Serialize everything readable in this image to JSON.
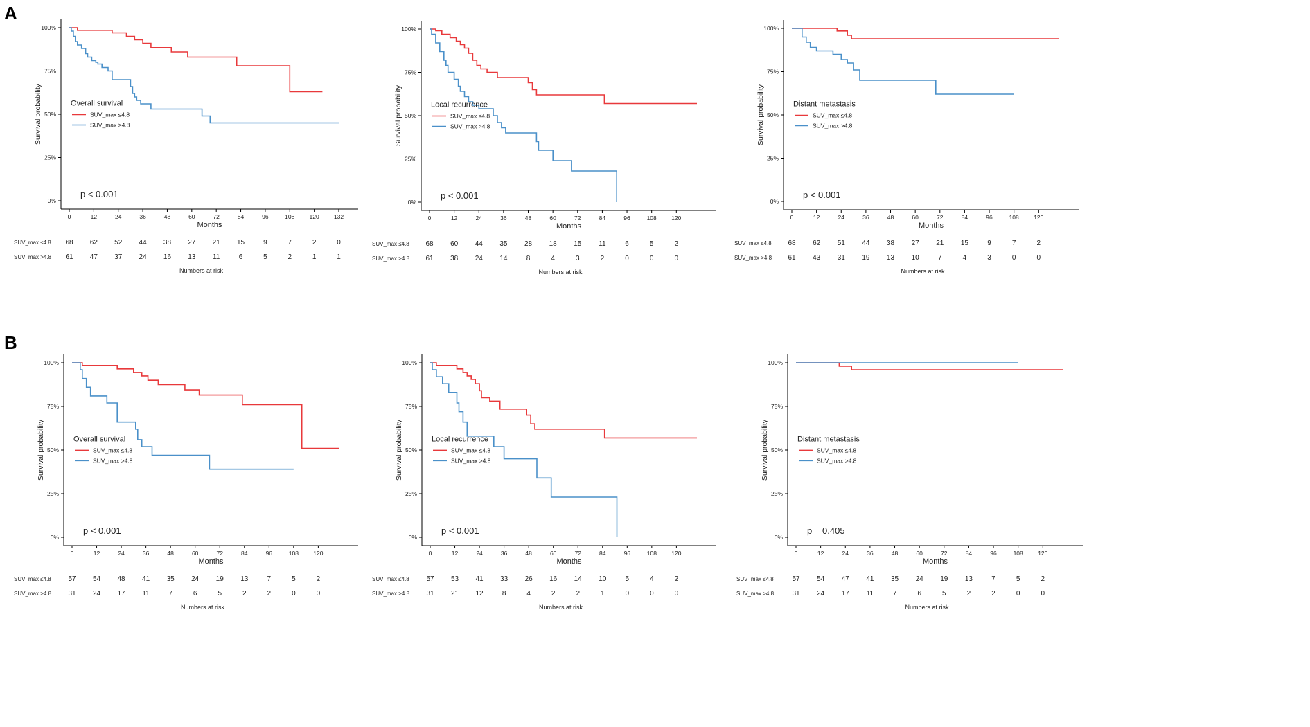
{
  "figure": {
    "panel_letters": [
      "A",
      "B"
    ],
    "colors": {
      "low": "#e8393b",
      "high": "#4a90c9",
      "axis": "#000000",
      "text": "#222222"
    }
  },
  "chart_data": [
    {
      "type": "line",
      "panel": "A",
      "position": "left",
      "title": "Overall survival",
      "xlabel": "Months",
      "ylabel": "Survival probability",
      "xlim": [
        0,
        132
      ],
      "ylim": [
        0,
        1
      ],
      "xticks": [
        0,
        12,
        24,
        36,
        48,
        60,
        72,
        84,
        96,
        108,
        120,
        132
      ],
      "yticks": [
        "0%",
        "25%",
        "50%",
        "75%",
        "100%"
      ],
      "pvalue": "p < 0.001",
      "legend": [
        "SUV_max ≤4.8",
        "SUV_max >4.8"
      ],
      "series": [
        {
          "name": "SUV_max ≤4.8",
          "color": "#e8393b",
          "x": [
            0,
            4,
            21,
            28,
            32,
            36,
            40,
            50,
            58,
            66,
            82,
            108,
            124
          ],
          "y": [
            1,
            0.985,
            0.97,
            0.95,
            0.93,
            0.91,
            0.885,
            0.86,
            0.83,
            0.83,
            0.78,
            0.63,
            0.63
          ]
        },
        {
          "name": "SUV_max >4.8",
          "color": "#4a90c9",
          "x": [
            0,
            1,
            2,
            3,
            4,
            6,
            8,
            9,
            11,
            13,
            14,
            16,
            19,
            21,
            30,
            31,
            32,
            33,
            35,
            40,
            65,
            69,
            132
          ],
          "y": [
            1,
            0.98,
            0.95,
            0.92,
            0.9,
            0.88,
            0.85,
            0.83,
            0.81,
            0.8,
            0.79,
            0.77,
            0.75,
            0.7,
            0.66,
            0.62,
            0.6,
            0.58,
            0.56,
            0.53,
            0.49,
            0.45,
            0.45
          ]
        }
      ],
      "risk_table": {
        "title": "Numbers at risk",
        "rows": [
          {
            "label": "SUV_max ≤4.8",
            "values": [
              "68",
              "62",
              "52",
              "44",
              "38",
              "27",
              "21",
              "15",
              "9",
              "7",
              "2",
              "0"
            ]
          },
          {
            "label": "SUV_max >4.8",
            "values": [
              "61",
              "47",
              "37",
              "24",
              "16",
              "13",
              "11",
              "6",
              "5",
              "2",
              "1",
              "1"
            ]
          }
        ]
      }
    },
    {
      "type": "line",
      "panel": "A",
      "position": "middle",
      "title": "Local recurrence",
      "xlabel": "Months",
      "ylabel": "Survival probability",
      "xlim": [
        0,
        130
      ],
      "ylim": [
        0,
        1
      ],
      "xticks": [
        0,
        12,
        24,
        36,
        48,
        60,
        72,
        84,
        96,
        108,
        120
      ],
      "yticks": [
        "0%",
        "25%",
        "50%",
        "75%",
        "100%"
      ],
      "pvalue": "p < 0.001",
      "legend": [
        "SUV_max ≤4.8",
        "SUV_max >4.8"
      ],
      "series": [
        {
          "name": "SUV_max ≤4.8",
          "color": "#e8393b",
          "x": [
            0,
            3,
            6,
            10,
            13,
            15,
            17,
            19,
            21,
            23,
            25,
            28,
            33,
            40,
            48,
            50,
            52,
            85,
            130
          ],
          "y": [
            1,
            0.99,
            0.97,
            0.95,
            0.93,
            0.91,
            0.89,
            0.86,
            0.82,
            0.79,
            0.77,
            0.75,
            0.72,
            0.72,
            0.69,
            0.65,
            0.62,
            0.57,
            0.57
          ]
        },
        {
          "name": "SUV_max >4.8",
          "color": "#4a90c9",
          "x": [
            0,
            1,
            3,
            5,
            7,
            8,
            9,
            12,
            14,
            15,
            17,
            19,
            21,
            24,
            31,
            33,
            35,
            37,
            52,
            53,
            60,
            69,
            91
          ],
          "y": [
            1,
            0.97,
            0.92,
            0.87,
            0.82,
            0.79,
            0.75,
            0.71,
            0.67,
            0.64,
            0.61,
            0.58,
            0.56,
            0.54,
            0.5,
            0.46,
            0.43,
            0.4,
            0.35,
            0.3,
            0.24,
            0.18,
            0
          ]
        }
      ],
      "risk_table": {
        "title": "Numbers at risk",
        "rows": [
          {
            "label": "SUV_max ≤4.8",
            "values": [
              "68",
              "60",
              "44",
              "35",
              "28",
              "18",
              "15",
              "11",
              "6",
              "5",
              "2"
            ]
          },
          {
            "label": "SUV_max >4.8",
            "values": [
              "61",
              "38",
              "24",
              "14",
              "8",
              "4",
              "3",
              "2",
              "0",
              "0",
              "0"
            ]
          }
        ]
      }
    },
    {
      "type": "line",
      "panel": "A",
      "position": "right",
      "title": "Distant metastasis",
      "xlabel": "Months",
      "ylabel": "Survival probability",
      "xlim": [
        0,
        130
      ],
      "ylim": [
        0,
        1
      ],
      "xticks": [
        0,
        12,
        24,
        36,
        48,
        60,
        72,
        84,
        96,
        108,
        120
      ],
      "yticks": [
        "0%",
        "25%",
        "50%",
        "75%",
        "100%"
      ],
      "pvalue": "p < 0.001",
      "legend": [
        "SUV_max ≤4.8",
        "SUV_max >4.8"
      ],
      "series": [
        {
          "name": "SUV_max ≤4.8",
          "color": "#e8393b",
          "x": [
            0,
            22,
            27,
            29,
            130
          ],
          "y": [
            1,
            0.985,
            0.96,
            0.94,
            0.94
          ]
        },
        {
          "name": "SUV_max >4.8",
          "color": "#4a90c9",
          "x": [
            0,
            5,
            7,
            9,
            12,
            20,
            24,
            27,
            30,
            33,
            70,
            108
          ],
          "y": [
            1,
            0.95,
            0.92,
            0.89,
            0.87,
            0.85,
            0.82,
            0.8,
            0.76,
            0.7,
            0.62,
            0.62
          ]
        }
      ],
      "risk_table": {
        "title": "Numbers at risk",
        "rows": [
          {
            "label": "SUV_max ≤4.8",
            "values": [
              "68",
              "62",
              "51",
              "44",
              "38",
              "27",
              "21",
              "15",
              "9",
              "7",
              "2"
            ]
          },
          {
            "label": "SUV_max >4.8",
            "values": [
              "61",
              "43",
              "31",
              "19",
              "13",
              "10",
              "7",
              "4",
              "3",
              "0",
              "0"
            ]
          }
        ]
      }
    },
    {
      "type": "line",
      "panel": "B",
      "position": "left",
      "title": "Overall survival",
      "xlabel": "Months",
      "ylabel": "Survival probability",
      "xlim": [
        0,
        130
      ],
      "ylim": [
        0,
        1
      ],
      "xticks": [
        0,
        12,
        24,
        36,
        48,
        60,
        72,
        84,
        96,
        108,
        120
      ],
      "yticks": [
        "0%",
        "25%",
        "50%",
        "75%",
        "100%"
      ],
      "pvalue": "p < 0.001",
      "legend": [
        "SUV_max ≤4.8",
        "SUV_max >4.8"
      ],
      "series": [
        {
          "name": "SUV_max ≤4.8",
          "color": "#e8393b",
          "x": [
            0,
            5,
            22,
            30,
            34,
            37,
            42,
            55,
            62,
            83,
            112,
            130
          ],
          "y": [
            1,
            0.985,
            0.965,
            0.945,
            0.925,
            0.9,
            0.875,
            0.845,
            0.815,
            0.76,
            0.51,
            0.51
          ]
        },
        {
          "name": "SUV_max >4.8",
          "color": "#4a90c9",
          "x": [
            0,
            4,
            5,
            7,
            9,
            17,
            22,
            31,
            32,
            34,
            39,
            67,
            108
          ],
          "y": [
            1,
            0.96,
            0.91,
            0.86,
            0.81,
            0.77,
            0.66,
            0.62,
            0.56,
            0.52,
            0.47,
            0.39,
            0.39
          ]
        }
      ],
      "risk_table": {
        "title": "Numbers at risk",
        "rows": [
          {
            "label": "SUV_max ≤4.8",
            "values": [
              "57",
              "54",
              "48",
              "41",
              "35",
              "24",
              "19",
              "13",
              "7",
              "5",
              "2"
            ]
          },
          {
            "label": "SUV_max >4.8",
            "values": [
              "31",
              "24",
              "17",
              "11",
              "7",
              "6",
              "5",
              "2",
              "2",
              "0",
              "0"
            ]
          }
        ]
      }
    },
    {
      "type": "line",
      "panel": "B",
      "position": "middle",
      "title": "Local recurrence",
      "xlabel": "Months",
      "ylabel": "Survival probability",
      "xlim": [
        0,
        130
      ],
      "ylim": [
        0,
        1
      ],
      "xticks": [
        0,
        12,
        24,
        36,
        48,
        60,
        72,
        84,
        96,
        108,
        120
      ],
      "yticks": [
        "0%",
        "25%",
        "50%",
        "75%",
        "100%"
      ],
      "pvalue": "p < 0.001",
      "legend": [
        "SUV_max ≤4.8",
        "SUV_max >4.8"
      ],
      "series": [
        {
          "name": "SUV_max ≤4.8",
          "color": "#e8393b",
          "x": [
            0,
            3,
            13,
            16,
            18,
            20,
            22,
            24,
            25,
            29,
            34,
            47,
            49,
            51,
            85,
            130
          ],
          "y": [
            1,
            0.985,
            0.965,
            0.945,
            0.925,
            0.905,
            0.88,
            0.84,
            0.8,
            0.78,
            0.735,
            0.7,
            0.65,
            0.62,
            0.57,
            0.57
          ]
        },
        {
          "name": "SUV_max >4.8",
          "color": "#4a90c9",
          "x": [
            0,
            1,
            3,
            6,
            9,
            13,
            14,
            16,
            18,
            31,
            36,
            52,
            59,
            91
          ],
          "y": [
            1,
            0.96,
            0.92,
            0.88,
            0.83,
            0.77,
            0.72,
            0.66,
            0.58,
            0.52,
            0.45,
            0.34,
            0.23,
            0
          ]
        }
      ],
      "risk_table": {
        "title": "Numbers at risk",
        "rows": [
          {
            "label": "SUV_max ≤4.8",
            "values": [
              "57",
              "53",
              "41",
              "33",
              "26",
              "16",
              "14",
              "10",
              "5",
              "4",
              "2"
            ]
          },
          {
            "label": "SUV_max >4.8",
            "values": [
              "31",
              "21",
              "12",
              "8",
              "4",
              "2",
              "2",
              "1",
              "0",
              "0",
              "0"
            ]
          }
        ]
      }
    },
    {
      "type": "line",
      "panel": "B",
      "position": "right",
      "title": "Distant metastasis",
      "xlabel": "Months",
      "ylabel": "Survival probability",
      "xlim": [
        0,
        130
      ],
      "ylim": [
        0,
        1
      ],
      "xticks": [
        0,
        12,
        24,
        36,
        48,
        60,
        72,
        84,
        96,
        108,
        120
      ],
      "yticks": [
        "0%",
        "25%",
        "50%",
        "75%",
        "100%"
      ],
      "pvalue": "p = 0.405",
      "legend": [
        "SUV_max ≤4.8",
        "SUV_max >4.8"
      ],
      "series": [
        {
          "name": "SUV_max ≤4.8",
          "color": "#e8393b",
          "x": [
            0,
            21,
            27,
            130
          ],
          "y": [
            1,
            0.98,
            0.96,
            0.96
          ]
        },
        {
          "name": "SUV_max >4.8",
          "color": "#4a90c9",
          "x": [
            0,
            108
          ],
          "y": [
            1,
            1
          ]
        }
      ],
      "risk_table": {
        "title": "Numbers at risk",
        "rows": [
          {
            "label": "SUV_max ≤4.8",
            "values": [
              "57",
              "54",
              "47",
              "41",
              "35",
              "24",
              "19",
              "13",
              "7",
              "5",
              "2"
            ]
          },
          {
            "label": "SUV_max >4.8",
            "values": [
              "31",
              "24",
              "17",
              "11",
              "7",
              "6",
              "5",
              "2",
              "2",
              "0",
              "0"
            ]
          }
        ]
      }
    }
  ]
}
